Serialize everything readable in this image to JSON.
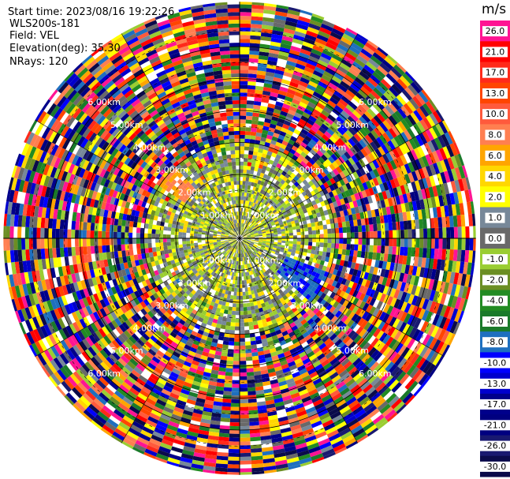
{
  "info": {
    "start_time": "Start time: 2023/08/16 19:22:26",
    "instrument": "WLS200s-181",
    "field": "Field: VEL",
    "elevation": "Elevation(deg): 35.30",
    "nrays": "NRays: 120"
  },
  "colorbar": {
    "unit": "m/s",
    "levels": [
      {
        "label": "26.0",
        "color": "#ff1493"
      },
      {
        "label": "21.0",
        "color": "#ff0000"
      },
      {
        "label": "17.0",
        "color": "#ff2a1a"
      },
      {
        "label": "13.0",
        "color": "#ff4500"
      },
      {
        "label": "10.0",
        "color": "#ff5a3c"
      },
      {
        "label": "8.0",
        "color": "#ff7f50"
      },
      {
        "label": "6.0",
        "color": "#ffa500"
      },
      {
        "label": "4.0",
        "color": "#ffd700"
      },
      {
        "label": "2.0",
        "color": "#ffff00"
      },
      {
        "label": "1.0",
        "color": "#778899"
      },
      {
        "label": "0.0",
        "color": "#696969"
      },
      {
        "label": "-1.0",
        "color": "#9acd32"
      },
      {
        "label": "-2.0",
        "color": "#6b8e23"
      },
      {
        "label": "-4.0",
        "color": "#228b22"
      },
      {
        "label": "-6.0",
        "color": "#1a7a2a"
      },
      {
        "label": "-8.0",
        "color": "#1e6fbf"
      },
      {
        "label": "-10.0",
        "color": "#0000ff"
      },
      {
        "label": "-13.0",
        "color": "#0000cd"
      },
      {
        "label": "-17.0",
        "color": "#00008b"
      },
      {
        "label": "-21.0",
        "color": "#000080"
      },
      {
        "label": "-26.0",
        "color": "#191970"
      },
      {
        "label": "-30.0",
        "color": "#0a0a4a"
      }
    ]
  },
  "chart_data": {
    "type": "heatmap",
    "projection": "polar PPI",
    "field": "VEL",
    "units": "m/s",
    "nrays": 120,
    "range_rings_km": [
      1.0,
      2.0,
      3.0,
      4.0,
      5.0,
      6.0
    ],
    "range_ring_labels": [
      "1.00km",
      "2.00km",
      "3.00km",
      "4.00km",
      "5.00km",
      "6.00km"
    ],
    "max_range_km": 7.4,
    "inner_coherent_range_km": 3.0,
    "value_range": [
      -30.0,
      26.0
    ],
    "notes_visible": "Near-field (< ~3 km) mostly -2..+2 m/s (greens, greys, yellows); beyond that noisy random colours across full scale."
  }
}
